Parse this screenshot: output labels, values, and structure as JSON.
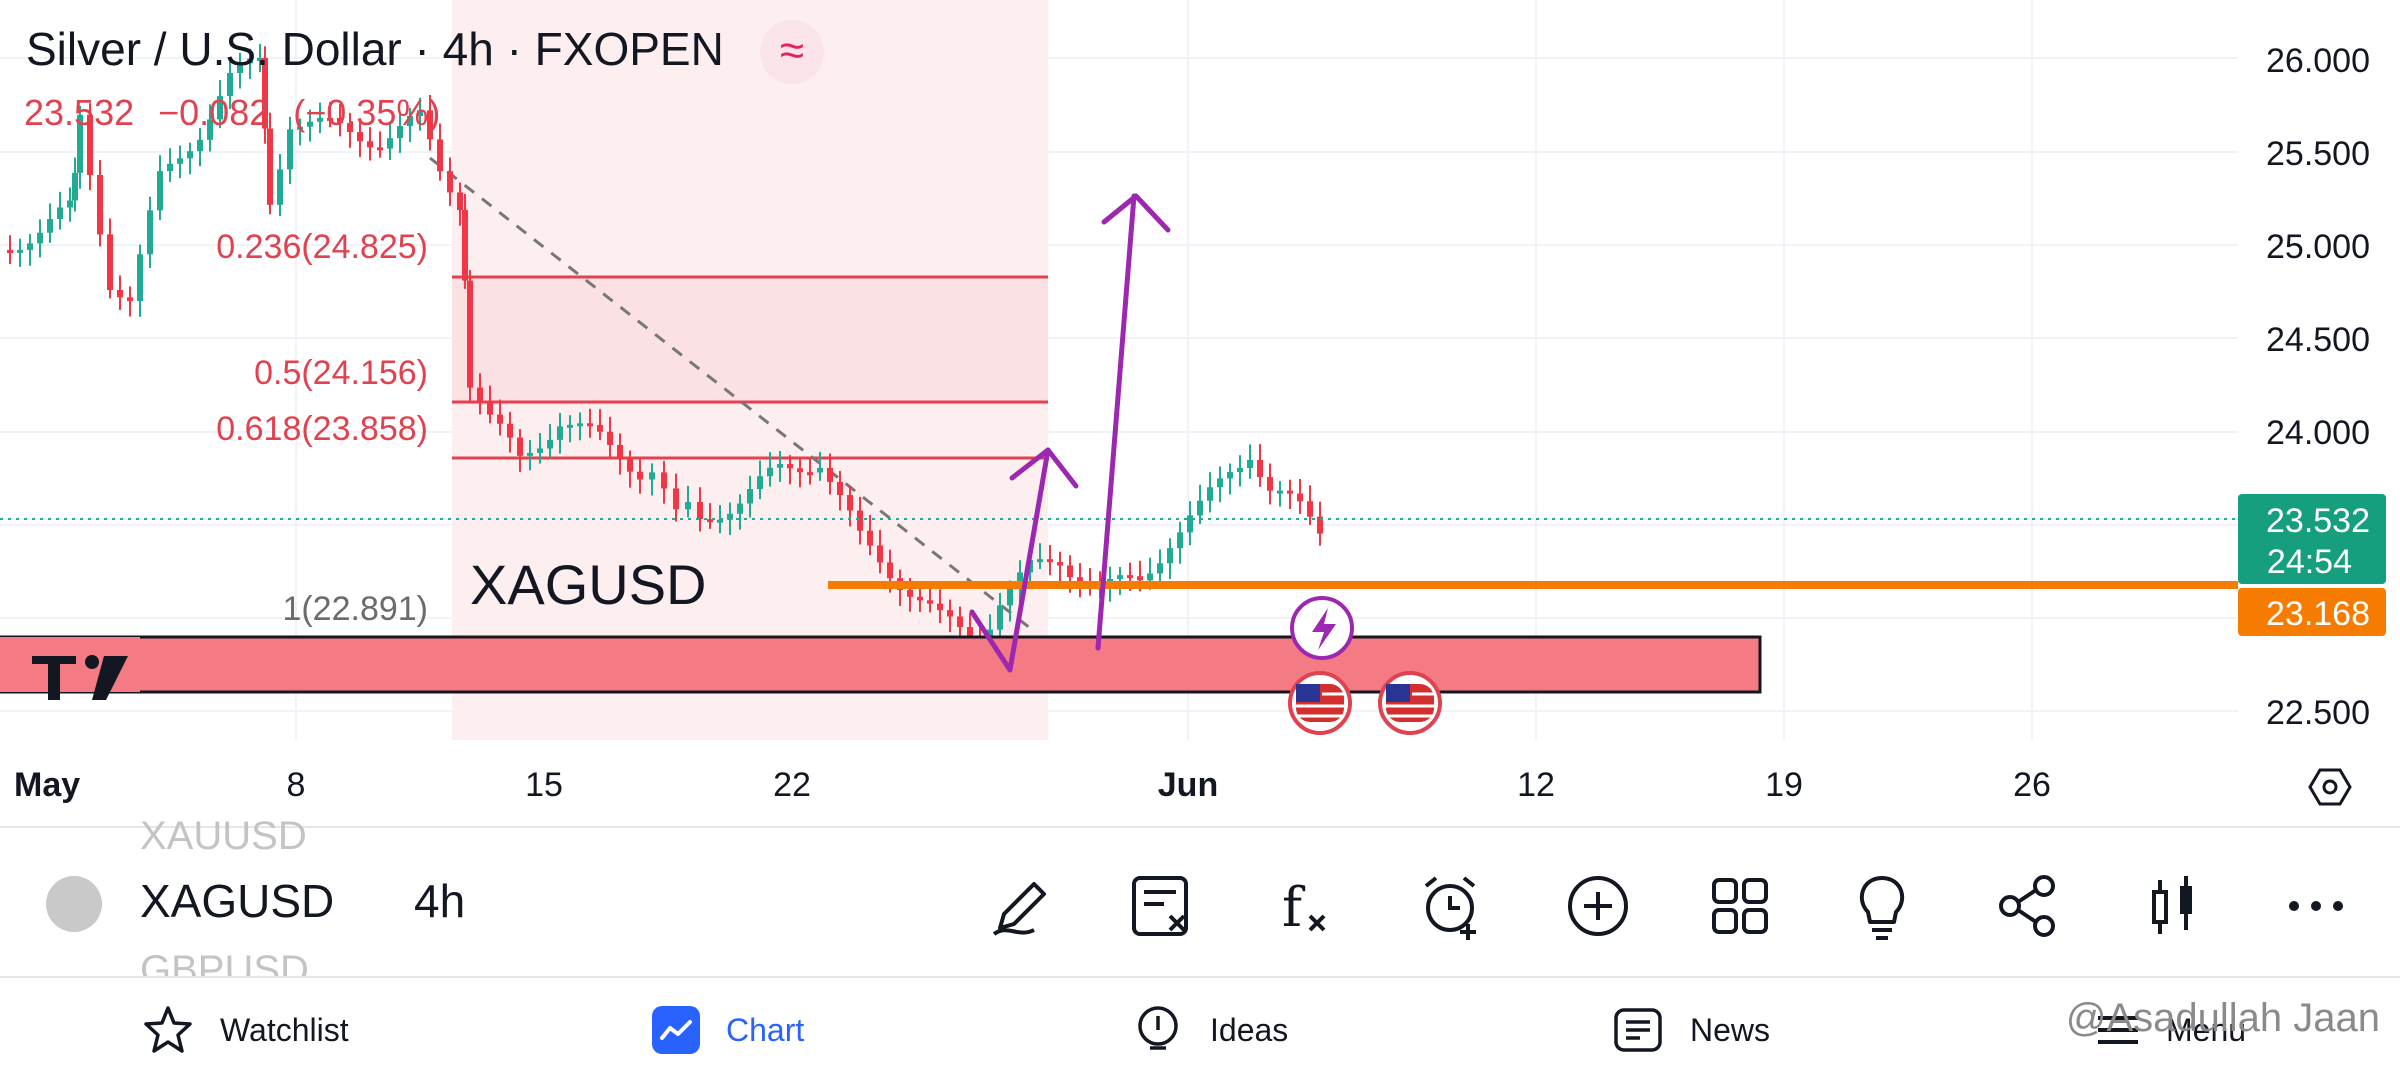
{
  "header": {
    "title": "Silver / U.S. Dollar · 4h · FXOPEN",
    "last_price": "23.532",
    "change": "−0.082",
    "change_pct": "(−0.35%)",
    "badge_icon": "approx-icon"
  },
  "chart_labels": {
    "fib_levels": [
      "0.236(24.825)",
      "0.5(24.156)",
      "0.618(23.858)",
      "1(22.891)"
    ],
    "symbol_annotation": "XAGUSD",
    "price_axis": [
      "26.000",
      "25.500",
      "25.000",
      "24.500",
      "24.000",
      "22.500"
    ],
    "time_axis": [
      "May",
      "8",
      "15",
      "22",
      "Jun",
      "12",
      "19",
      "26"
    ],
    "current_price_tag": "23.532",
    "countdown_tag": "24:54",
    "support_price_tag": "23.168"
  },
  "colors": {
    "up": "#22ab94",
    "down": "#f23645",
    "support": "#f57c00",
    "zone": "#f47a84",
    "arrow": "#9c27b0",
    "fib": "#e0424f"
  },
  "toolbar": {
    "symbol_above": "XAUUSD",
    "symbol": "XAGUSD",
    "symbol_below": "GBPUSD",
    "timeframe": "4h",
    "icons": [
      "pencil-icon",
      "notes-icon",
      "formula-icon",
      "alarm-icon",
      "plus-circle-icon",
      "grid-icon",
      "lightbulb-icon",
      "share-icon",
      "candles-icon",
      "more-icon"
    ]
  },
  "bottom_nav": {
    "tabs": [
      {
        "label": "Watchlist",
        "icon": "star-icon"
      },
      {
        "label": "Chart",
        "icon": "chart-icon"
      },
      {
        "label": "Ideas",
        "icon": "bulb-icon"
      },
      {
        "label": "News",
        "icon": "news-icon"
      },
      {
        "label": "Menu",
        "icon": "menu-icon"
      }
    ],
    "watermark": "@Asadullah Jaan"
  }
}
